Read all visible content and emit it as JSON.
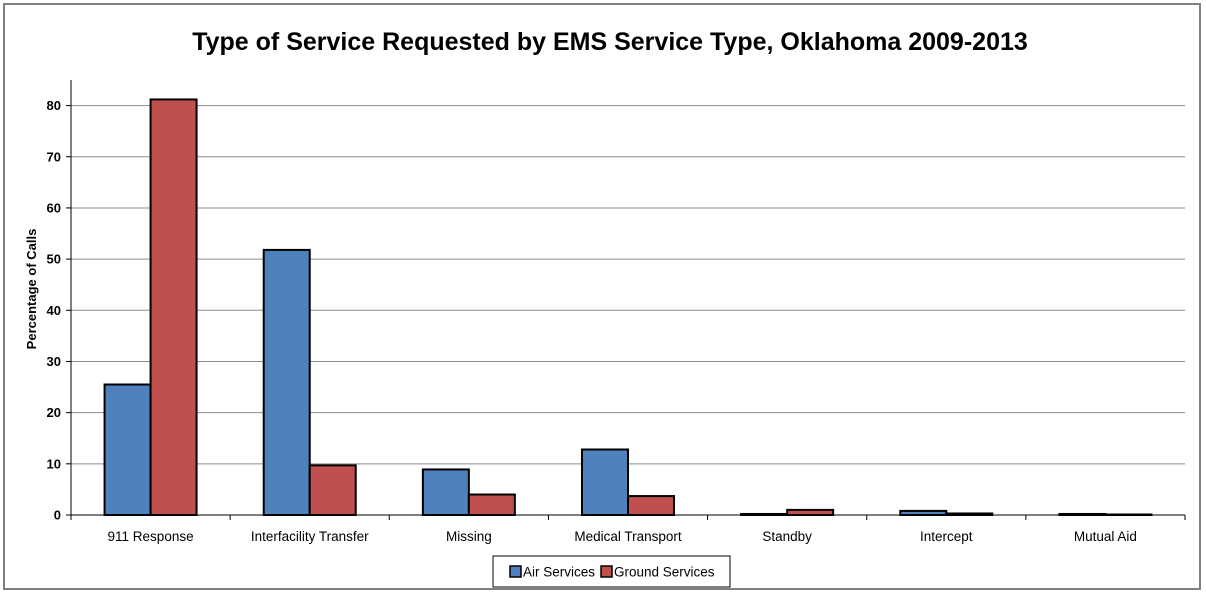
{
  "chart_data": {
    "type": "bar",
    "title": "Type of Service Requested by EMS Service Type, Oklahoma 2009-2013",
    "xlabel": "",
    "ylabel": "Percentage of Calls",
    "ylim": [
      0,
      85
    ],
    "yticks": [
      0,
      10,
      20,
      30,
      40,
      50,
      60,
      70,
      80
    ],
    "grid": true,
    "legend_position": "bottom",
    "categories": [
      "911 Response",
      "Interfacility Transfer",
      "Missing",
      "Medical Transport",
      "Standby",
      "Intercept",
      "Mutual Aid"
    ],
    "series": [
      {
        "name": "Air Services",
        "color": "#4f81bd",
        "values": [
          25.5,
          51.8,
          8.9,
          12.8,
          0.2,
          0.8,
          0.2
        ]
      },
      {
        "name": "Ground Services",
        "color": "#c0504d",
        "values": [
          81.2,
          9.7,
          4.0,
          3.7,
          1.0,
          0.3,
          0.1
        ]
      }
    ]
  }
}
